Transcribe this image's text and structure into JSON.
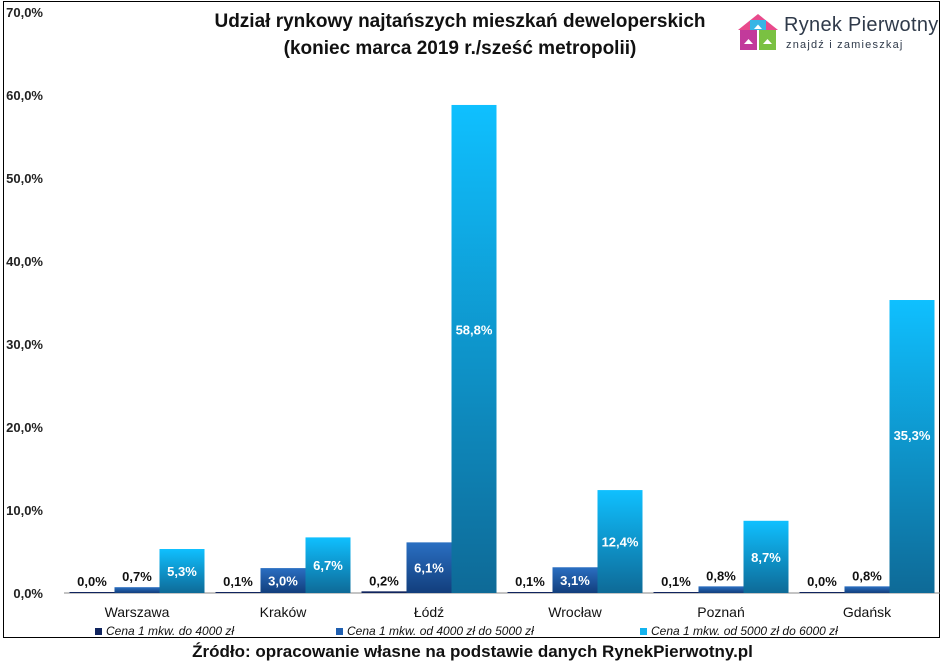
{
  "title_line1": "Udział rynkowy najtańszych mieszkań deweloperskich",
  "title_line2": "(koniec marca 2019 r./sześć metropolii)",
  "logo": {
    "name": "Rynek Pierwotny",
    "tagline": "znajdź i zamieszkaj"
  },
  "source": "Źródło: opracowanie własne na podstawie danych RynekPierwotny.pl",
  "colors": {
    "series1": "#10245e",
    "series2": "#1f5fb0",
    "series3": "#13b3ee"
  },
  "chart_data": {
    "type": "bar",
    "categories": [
      "Warszawa",
      "Kraków",
      "Łódź",
      "Wrocław",
      "Poznań",
      "Gdańsk"
    ],
    "series": [
      {
        "name": "Cena 1 mkw. do 4000 zł",
        "values": [
          0.0,
          0.1,
          0.2,
          0.1,
          0.1,
          0.0
        ],
        "labels": [
          "0,0%",
          "0,1%",
          "0,2%",
          "0,1%",
          "0,1%",
          "0,0%"
        ]
      },
      {
        "name": "Cena 1 mkw. od 4000 zł do 5000 zł",
        "values": [
          0.7,
          3.0,
          6.1,
          3.1,
          0.8,
          0.8
        ],
        "labels": [
          "0,7%",
          "3,0%",
          "6,1%",
          "3,1%",
          "0,8%",
          "0,8%"
        ]
      },
      {
        "name": "Cena 1 mkw. od 5000 zł do 6000 zł",
        "values": [
          5.3,
          6.7,
          58.8,
          12.4,
          8.7,
          35.3
        ],
        "labels": [
          "5,3%",
          "6,7%",
          "58,8%",
          "12,4%",
          "8,7%",
          "35,3%"
        ]
      }
    ],
    "yticks": [
      "0,0%",
      "10,0%",
      "20,0%",
      "30,0%",
      "40,0%",
      "50,0%",
      "60,0%",
      "70,0%"
    ],
    "ylim": [
      0,
      70
    ],
    "grid": false,
    "legend_position": "bottom"
  }
}
